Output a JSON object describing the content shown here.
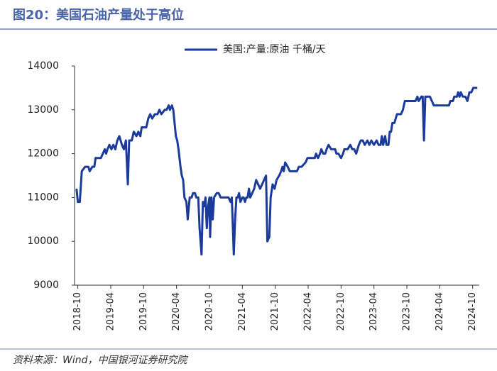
{
  "chart_data": {
    "type": "line",
    "title": "图20：美国石油产量处于高位",
    "source": "资料来源：Wind，中国银河证券研究院",
    "xlim": [
      2018.7,
      2024.85
    ],
    "xticks": [
      {
        "value": 2018.75,
        "label": "2018-10"
      },
      {
        "value": 2019.25,
        "label": "2019-04"
      },
      {
        "value": 2019.75,
        "label": "2019-10"
      },
      {
        "value": 2020.25,
        "label": "2020-04"
      },
      {
        "value": 2020.75,
        "label": "2020-10"
      },
      {
        "value": 2021.25,
        "label": "2021-04"
      },
      {
        "value": 2021.75,
        "label": "2021-10"
      },
      {
        "value": 2022.25,
        "label": "2022-04"
      },
      {
        "value": 2022.75,
        "label": "2022-10"
      },
      {
        "value": 2023.25,
        "label": "2023-04"
      },
      {
        "value": 2023.75,
        "label": "2023-10"
      },
      {
        "value": 2024.25,
        "label": "2024-04"
      },
      {
        "value": 2024.75,
        "label": "2024-10"
      }
    ],
    "ylim": [
      9000,
      14000
    ],
    "yticks": [
      9000,
      10000,
      11000,
      12000,
      13000,
      14000
    ],
    "grid": false,
    "legend": "top",
    "x": [
      2018.73,
      2018.75,
      2018.78,
      2018.81,
      2018.86,
      2018.91,
      2018.93,
      2018.97,
      2019.0,
      2019.02,
      2019.1,
      2019.13,
      2019.16,
      2019.18,
      2019.2,
      2019.23,
      2019.26,
      2019.29,
      2019.32,
      2019.35,
      2019.38,
      2019.42,
      2019.45,
      2019.48,
      2019.51,
      2019.53,
      2019.57,
      2019.6,
      2019.64,
      2019.67,
      2019.7,
      2019.72,
      2019.79,
      2019.82,
      2019.85,
      2019.88,
      2019.92,
      2019.96,
      2019.99,
      2020.02,
      2020.07,
      2020.1,
      2020.13,
      2020.15,
      2020.18,
      2020.2,
      2020.22,
      2020.24,
      2020.26,
      2020.28,
      2020.31,
      2020.33,
      2020.35,
      2020.37,
      2020.4,
      2020.42,
      2020.45,
      2020.48,
      2020.5,
      2020.53,
      2020.55,
      2020.58,
      2020.6,
      2020.63,
      2020.65,
      2020.67,
      2020.69,
      2020.71,
      2020.73,
      2020.75,
      2020.76,
      2020.78,
      2020.8,
      2020.82,
      2020.86,
      2020.89,
      2020.92,
      2020.98,
      2021.04,
      2021.07,
      2021.09,
      2021.12,
      2021.14,
      2021.16,
      2021.18,
      2021.2,
      2021.22,
      2021.25,
      2021.27,
      2021.29,
      2021.31,
      2021.33,
      2021.35,
      2021.37,
      2021.4,
      2021.43,
      2021.46,
      2021.49,
      2021.52,
      2021.55,
      2021.58,
      2021.61,
      2021.63,
      2021.66,
      2021.68,
      2021.71,
      2021.74,
      2021.77,
      2021.81,
      2021.84,
      2021.86,
      2021.88,
      2021.9,
      2021.94,
      2021.97,
      2022.02,
      2022.08,
      2022.11,
      2022.15,
      2022.21,
      2022.24,
      2022.28,
      2022.35,
      2022.37,
      2022.4,
      2022.43,
      2022.45,
      2022.48,
      2022.51,
      2022.53,
      2022.56,
      2022.6,
      2022.63,
      2022.66,
      2022.68,
      2022.71,
      2022.75,
      2022.78,
      2022.8,
      2022.85,
      2022.89,
      2022.92,
      2022.95,
      2022.98,
      2023.02,
      2023.05,
      2023.08,
      2023.11,
      2023.15,
      2023.18,
      2023.21,
      2023.25,
      2023.29,
      2023.32,
      2023.35,
      2023.37,
      2023.39,
      2023.42,
      2023.44,
      2023.47,
      2023.49,
      2023.51,
      2023.53,
      2023.56,
      2023.58,
      2023.6,
      2023.63,
      2023.66,
      2023.69,
      2023.72,
      2023.77,
      2023.83,
      2023.88,
      2023.91,
      2023.93,
      2023.97,
      2023.99,
      2024.01,
      2024.03,
      2024.06,
      2024.1,
      2024.13,
      2024.16,
      2024.22,
      2024.31,
      2024.39,
      2024.41,
      2024.45,
      2024.47,
      2024.51,
      2024.53,
      2024.55,
      2024.57,
      2024.6,
      2024.64,
      2024.67,
      2024.7,
      2024.73,
      2024.76,
      2024.82
    ],
    "series": [
      {
        "name": "美国:产量:原油 千桶/天",
        "color": "#1a3a9c",
        "values": [
          11200,
          10900,
          10900,
          11600,
          11700,
          11700,
          11600,
          11700,
          11700,
          11900,
          11900,
          12000,
          12100,
          12000,
          12100,
          12200,
          12100,
          12200,
          12100,
          12300,
          12400,
          12200,
          12100,
          12300,
          11300,
          12300,
          12300,
          12500,
          12400,
          12500,
          12400,
          12600,
          12600,
          12800,
          12900,
          12800,
          12900,
          12900,
          13000,
          12900,
          13000,
          13000,
          13100,
          13000,
          13100,
          13000,
          12700,
          12400,
          12300,
          12100,
          11700,
          11500,
          11400,
          11000,
          10900,
          10500,
          11000,
          11000,
          11100,
          11100,
          11000,
          11000,
          10300,
          9700,
          10900,
          10800,
          11000,
          10300,
          10800,
          11000,
          10100,
          11000,
          10500,
          11000,
          11100,
          11100,
          11000,
          11000,
          11000,
          10900,
          11000,
          9700,
          10500,
          11000,
          11000,
          11100,
          10900,
          11000,
          11000,
          10900,
          11000,
          11000,
          11200,
          11000,
          11100,
          11200,
          11400,
          11300,
          11200,
          11300,
          11400,
          11500,
          10000,
          10100,
          11000,
          11300,
          11200,
          11400,
          11500,
          11600,
          11700,
          11600,
          11800,
          11700,
          11600,
          11600,
          11600,
          11700,
          11700,
          11800,
          11900,
          11900,
          11900,
          12000,
          11900,
          12000,
          12100,
          12000,
          12000,
          12100,
          12200,
          12100,
          12100,
          12100,
          12000,
          12000,
          11900,
          12000,
          12100,
          12100,
          12200,
          12100,
          12100,
          12000,
          12200,
          12300,
          12300,
          12200,
          12300,
          12200,
          12300,
          12200,
          12300,
          12200,
          12200,
          12400,
          12200,
          12400,
          12200,
          12200,
          12500,
          12500,
          12700,
          12700,
          12800,
          12900,
          12900,
          12900,
          13000,
          13200,
          13200,
          13200,
          13200,
          13300,
          13200,
          13300,
          13300,
          12300,
          13300,
          13300,
          13300,
          13200,
          13100,
          13100,
          13100,
          13100,
          13200,
          13200,
          13300,
          13300,
          13400,
          13300,
          13400,
          13300,
          13300,
          13200,
          13400,
          13400,
          13500,
          13500
        ]
      }
    ]
  }
}
